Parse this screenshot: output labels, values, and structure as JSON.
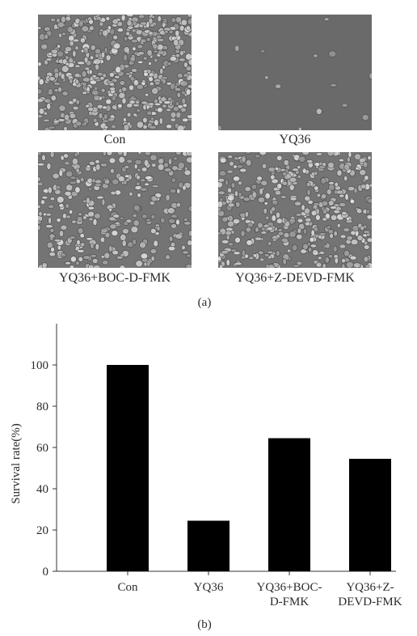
{
  "panel_a": {
    "label": "(a)",
    "images": [
      {
        "caption": "Con",
        "density": "dense"
      },
      {
        "caption": "YQ36",
        "density": "sparse"
      },
      {
        "caption": "YQ36+BOC-D-FMK",
        "density": "medium"
      },
      {
        "caption": "YQ36+Z-DEVD-FMK",
        "density": "medium-dense"
      }
    ]
  },
  "panel_b": {
    "label": "(b)"
  },
  "chart_data": {
    "type": "bar",
    "categories": [
      "Con",
      "YQ36",
      "YQ36+BOC-D-FMK",
      "YQ36+Z-DEVD-FMK"
    ],
    "category_label_lines": [
      [
        "Con"
      ],
      [
        "YQ36"
      ],
      [
        "YQ36+BOC-",
        "D-FMK"
      ],
      [
        "YQ36+Z-",
        "DEVD-FMK"
      ]
    ],
    "values": [
      100,
      24.5,
      64.5,
      54.5
    ],
    "ylabel": "Survival rate(%)",
    "xlabel": "",
    "ylim": [
      0,
      120
    ],
    "yticks": [
      0,
      20,
      40,
      60,
      80,
      100
    ],
    "bar_color": "#000000",
    "grid": false
  }
}
